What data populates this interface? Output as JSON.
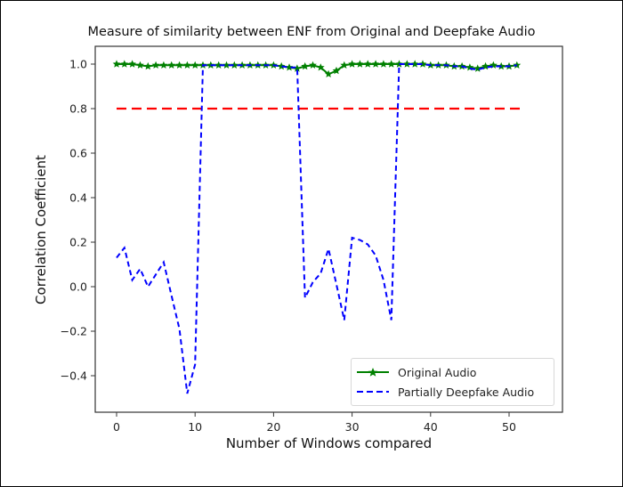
{
  "chart_data": {
    "type": "line",
    "title": "Measure of similarity between ENF from Original and Deepfake Audio",
    "xlabel": "Number of Windows compared",
    "ylabel": "Correlation Coefficient",
    "xlim": [
      -2.7,
      56.7
    ],
    "ylim": [
      -0.56,
      1.08
    ],
    "xticks": [
      0,
      10,
      20,
      30,
      40,
      50
    ],
    "yticks": [
      1.0,
      0.8,
      0.6,
      0.4,
      0.2,
      0.0,
      -0.2,
      -0.4
    ],
    "ytick_labels": [
      "1.0",
      "0.8",
      "0.6",
      "0.4",
      "0.2",
      "0.0",
      "−0.2",
      "−0.4"
    ],
    "xtick_labels": [
      "0",
      "10",
      "20",
      "30",
      "40",
      "50"
    ],
    "grid": false,
    "legend_position": "lower right",
    "series": [
      {
        "name": "Original Audio",
        "color": "#008000",
        "style": "solid",
        "marker": "star",
        "x": [
          0,
          1,
          2,
          3,
          4,
          5,
          6,
          7,
          8,
          9,
          10,
          11,
          12,
          13,
          14,
          15,
          16,
          17,
          18,
          19,
          20,
          21,
          22,
          23,
          24,
          25,
          26,
          27,
          28,
          29,
          30,
          31,
          32,
          33,
          34,
          35,
          36,
          37,
          38,
          39,
          40,
          41,
          42,
          43,
          44,
          45,
          46,
          47,
          48,
          49,
          50,
          51
        ],
        "values": [
          1.0,
          1.0,
          1.0,
          0.995,
          0.99,
          0.995,
          0.995,
          0.995,
          0.995,
          0.995,
          0.995,
          0.995,
          0.995,
          0.995,
          0.995,
          0.995,
          0.995,
          0.995,
          0.995,
          0.995,
          0.995,
          0.99,
          0.985,
          0.98,
          0.99,
          0.995,
          0.985,
          0.955,
          0.97,
          0.995,
          1.0,
          1.0,
          1.0,
          1.0,
          1.0,
          1.0,
          1.0,
          1.0,
          1.0,
          1.0,
          0.995,
          0.995,
          0.995,
          0.99,
          0.99,
          0.985,
          0.98,
          0.99,
          0.995,
          0.99,
          0.99,
          0.995
        ]
      },
      {
        "name": "Partially Deepfake Audio",
        "color": "#0000ff",
        "style": "dashed",
        "x": [
          0,
          1,
          2,
          3,
          4,
          5,
          6,
          7,
          8,
          9,
          10,
          11,
          12,
          13,
          14,
          15,
          16,
          17,
          18,
          19,
          20,
          21,
          22,
          23,
          24,
          25,
          26,
          27,
          28,
          29,
          30,
          31,
          32,
          33,
          34,
          35,
          36,
          37,
          38,
          39,
          40,
          41,
          42,
          43,
          44,
          45,
          46,
          47,
          48,
          49,
          50,
          51
        ],
        "values": [
          0.13,
          0.175,
          0.03,
          0.08,
          0.0,
          0.055,
          0.11,
          -0.04,
          -0.19,
          -0.48,
          -0.35,
          0.995,
          0.995,
          0.995,
          0.995,
          0.995,
          0.995,
          0.995,
          0.995,
          0.995,
          0.995,
          0.99,
          0.985,
          0.985,
          -0.05,
          0.02,
          0.06,
          0.17,
          0.01,
          -0.15,
          0.22,
          0.21,
          0.19,
          0.14,
          0.03,
          -0.15,
          1.0,
          1.0,
          1.0,
          1.0,
          0.995,
          0.995,
          0.995,
          0.99,
          0.99,
          0.98,
          0.975,
          0.985,
          0.99,
          0.99,
          0.99,
          0.995
        ]
      },
      {
        "name": "Threshold",
        "color": "#ff0000",
        "style": "dashed",
        "x": [
          0,
          52
        ],
        "values": [
          0.8,
          0.8
        ]
      }
    ]
  },
  "legend": {
    "items": [
      {
        "label": "Original Audio",
        "color": "#008000"
      },
      {
        "label": "Partially Deepfake Audio",
        "color": "#0000ff"
      }
    ]
  }
}
